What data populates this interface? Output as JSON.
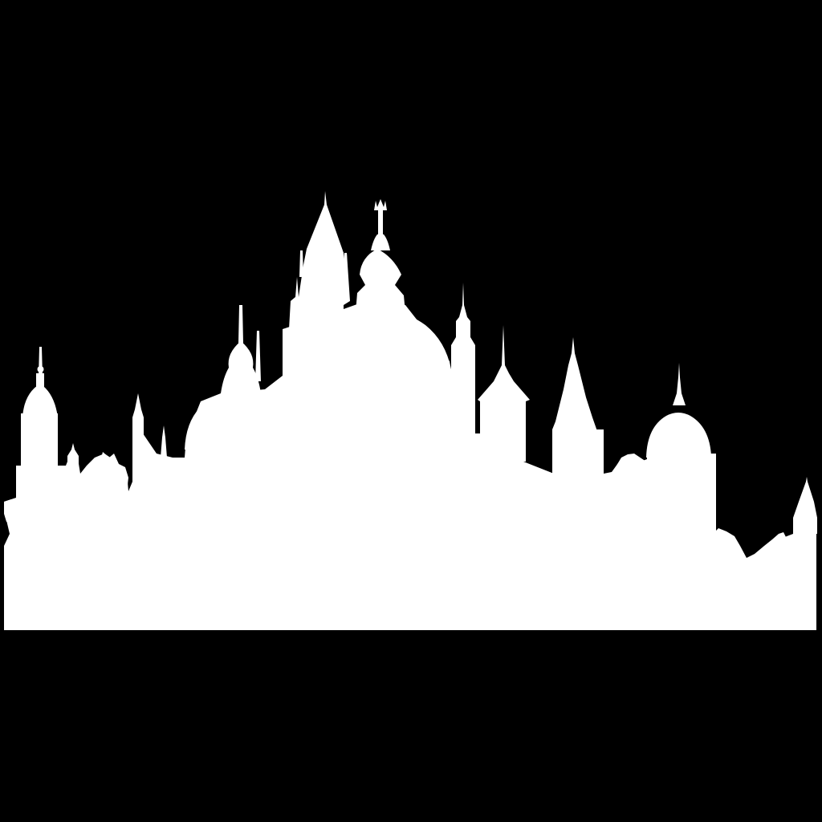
{
  "image": {
    "subject": "skyline-silhouette",
    "colors": {
      "background": "#000000",
      "silhouette": "#ffffff"
    }
  }
}
